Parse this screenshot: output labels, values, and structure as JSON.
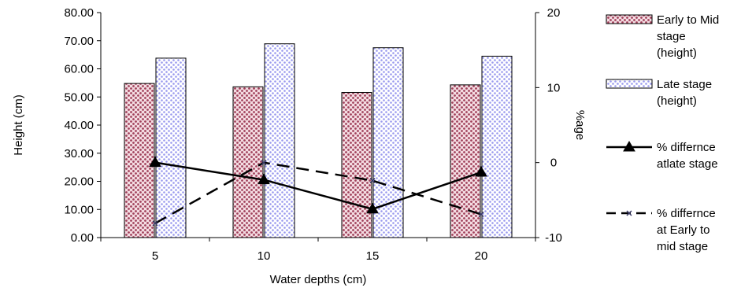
{
  "chart_data": {
    "type": "bar",
    "title": "",
    "xlabel": "Water depths (cm)",
    "ylabel": "Height (cm)",
    "y2label": "%age",
    "categories": [
      "5",
      "10",
      "15",
      "20"
    ],
    "ylim": [
      0,
      80
    ],
    "y_ticks": [
      "0.00",
      "10.00",
      "20.00",
      "30.00",
      "40.00",
      "50.00",
      "60.00",
      "70.00",
      "80.00"
    ],
    "y2lim": [
      -10,
      20
    ],
    "y2_ticks": [
      "-10",
      "0",
      "10",
      "20"
    ],
    "grid": false,
    "legend_position": "right",
    "series": [
      {
        "kind": "bar",
        "axis": "left",
        "legend_lines": [
          "Early to Mid",
          "stage",
          "(height)"
        ],
        "values": [
          54.8,
          53.6,
          51.6,
          54.3
        ],
        "color": "#a0405a"
      },
      {
        "kind": "bar",
        "axis": "left",
        "legend_lines": [
          "Late stage",
          "(height)"
        ],
        "values": [
          63.8,
          68.9,
          67.5,
          64.5
        ],
        "color": "#9999ee"
      },
      {
        "kind": "line",
        "axis": "right",
        "style": "solid",
        "marker": "triangle",
        "legend_lines": [
          "% differnce",
          "atlate stage"
        ],
        "values": [
          0.0,
          -2.3,
          -6.2,
          -1.3
        ],
        "color": "#000000"
      },
      {
        "kind": "line",
        "axis": "right",
        "style": "dashed",
        "marker": "x",
        "legend_lines": [
          "% differnce",
          "at Early to",
          "mid stage"
        ],
        "values": [
          -8.1,
          0.0,
          -2.4,
          -6.9
        ],
        "color": "#000000"
      }
    ]
  }
}
